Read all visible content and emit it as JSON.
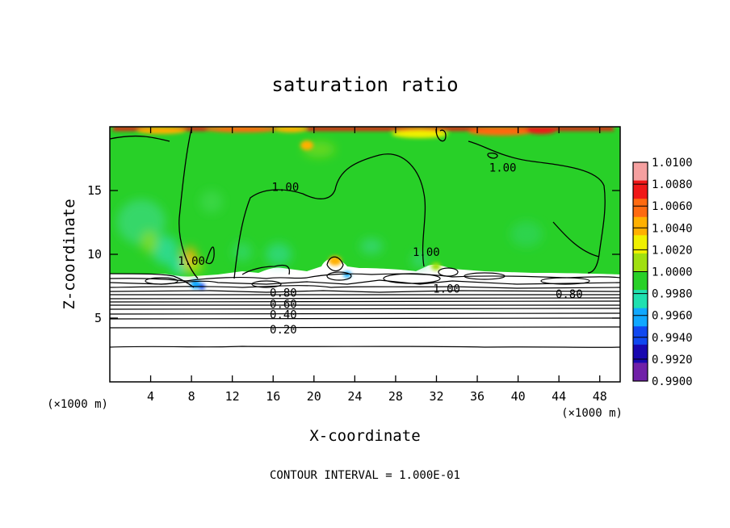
{
  "chart_data": {
    "type": "heatmap",
    "title": "saturation ratio",
    "xlabel": "X-coordinate",
    "ylabel": "Z-coordinate",
    "x_unit_left": "(×1000 m)",
    "x_unit_right": "(×1000 m)",
    "footer": "CONTOUR INTERVAL = 1.000E-01",
    "xlim": [
      0,
      50
    ],
    "ylim": [
      0,
      20
    ],
    "xticks": [
      4,
      8,
      12,
      16,
      20,
      24,
      28,
      32,
      36,
      40,
      44,
      48
    ],
    "yticks": [
      5,
      10,
      15
    ],
    "colorbar": {
      "labels": [
        "1.0100",
        "1.0080",
        "1.0060",
        "1.0040",
        "1.0020",
        "1.0000",
        "0.9980",
        "0.9960",
        "0.9940",
        "0.9920",
        "0.9900"
      ],
      "colors": [
        "#f5a0a0",
        "#f01818",
        "#ff6a10",
        "#ffb000",
        "#f0f000",
        "#a0e010",
        "#28d028",
        "#20e0b0",
        "#10a8ff",
        "#1048f0",
        "#1808b0",
        "#7020a8"
      ]
    },
    "contour_labels": [
      {
        "text": "1.00",
        "x": 17.2,
        "z": 15.3
      },
      {
        "text": "1.00",
        "x": 38.5,
        "z": 16.8
      },
      {
        "text": "1.00",
        "x": 8.0,
        "z": 9.5
      },
      {
        "text": "1.00",
        "x": 31.0,
        "z": 10.2
      },
      {
        "text": "1.00",
        "x": 33.0,
        "z": 7.3
      },
      {
        "text": "0.80",
        "x": 45.0,
        "z": 6.9
      },
      {
        "text": "0.80",
        "x": 17.0,
        "z": 7.0
      },
      {
        "text": "0.60",
        "x": 17.0,
        "z": 6.1
      },
      {
        "text": "0.40",
        "x": 17.0,
        "z": 5.3
      },
      {
        "text": "0.20",
        "x": 17.0,
        "z": 4.1
      }
    ]
  }
}
